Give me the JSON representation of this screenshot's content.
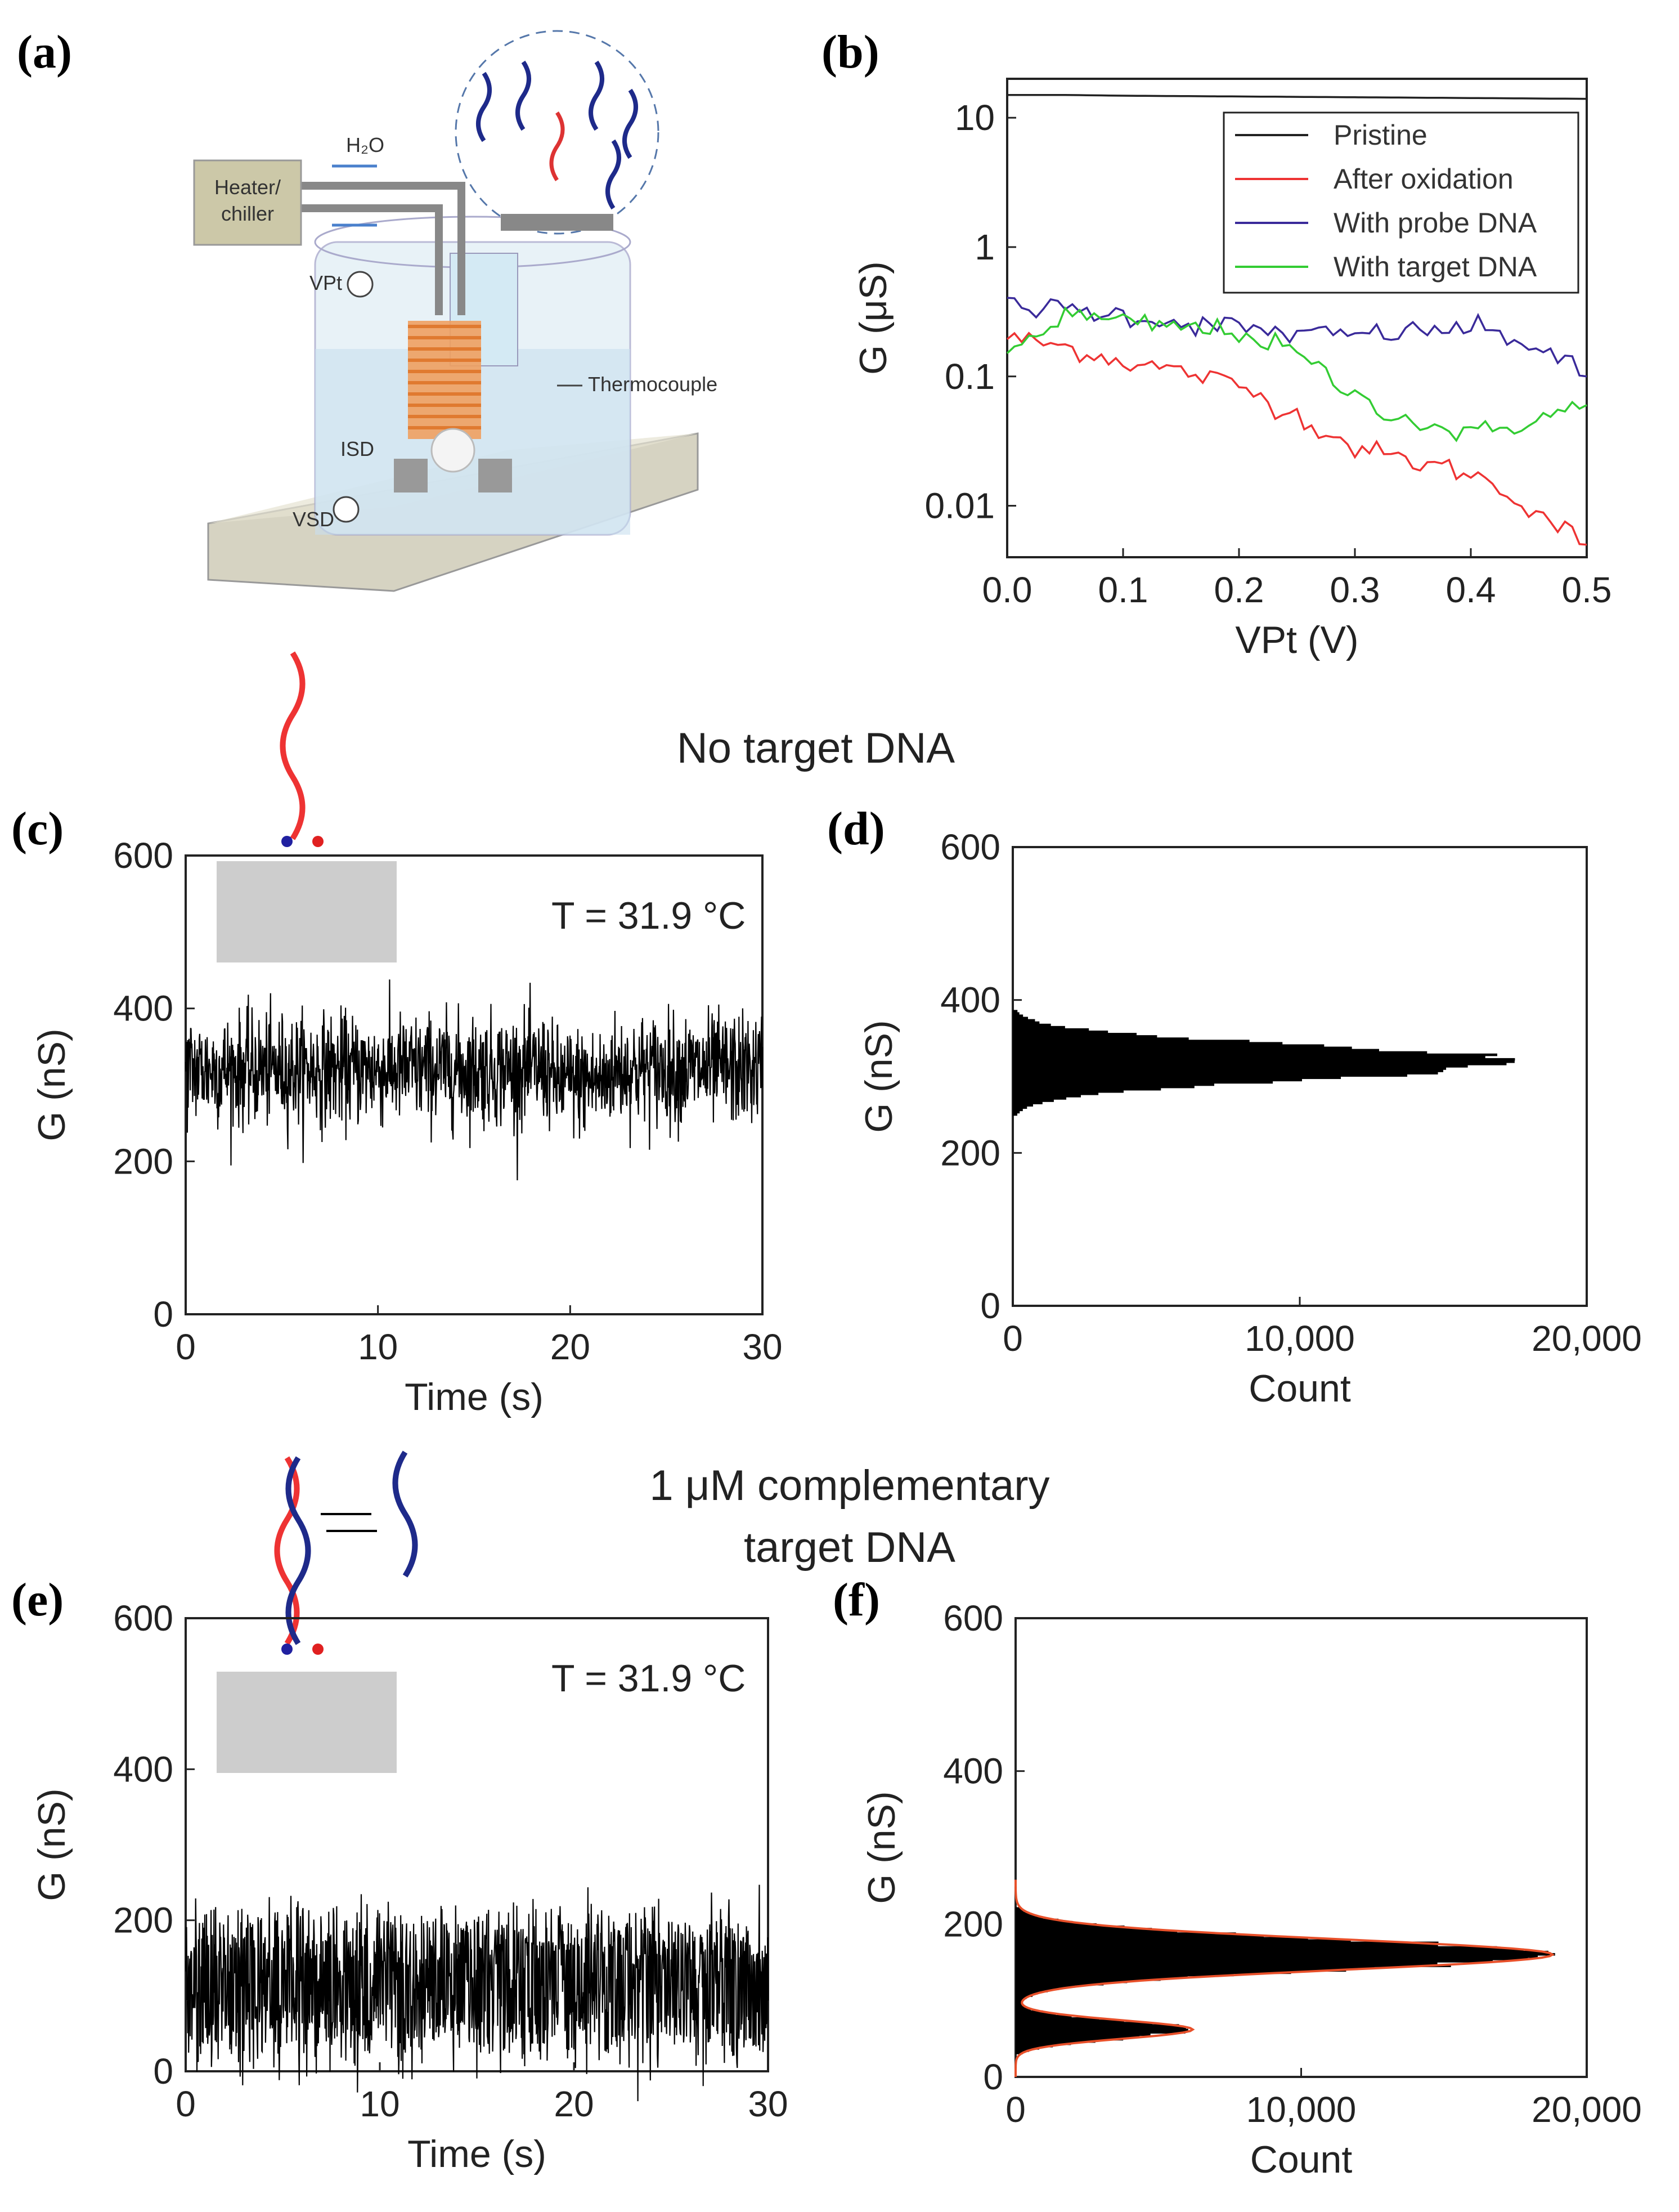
{
  "panels": {
    "a": {
      "label": "(a)",
      "h2o": "H₂O",
      "heater": [
        "Heater/",
        "chiller"
      ],
      "vpt": "VPt",
      "thermocouple": "Thermocouple",
      "isd": "ISD",
      "vsd": "VSD"
    },
    "b_label": "(b)",
    "c_label": "(c)",
    "d_label": "(d)",
    "e_label": "(e)",
    "f_label": "(f)"
  },
  "headings": {
    "no_target": "No target DNA",
    "target_line1": "1 μM complementary",
    "target_line2": "target DNA"
  },
  "temperature_note": "T = 31.9 °C",
  "colors": {
    "pristine": "#222222",
    "oxidation": "#ee3333",
    "probe": "#3a2a9a",
    "target": "#33cc33",
    "fit": "#e8502a",
    "fit2": "#33cc33"
  },
  "chart_data": [
    {
      "id": "b",
      "type": "line",
      "xlabel": "VPt (V)",
      "ylabel": "G (μS)",
      "xlim": [
        0,
        0.5
      ],
      "ylim": [
        0.004,
        20
      ],
      "yscale": "log",
      "x_ticks": [
        "0.0",
        "0.1",
        "0.2",
        "0.3",
        "0.4",
        "0.5"
      ],
      "y_ticks": [
        "10",
        "1",
        "0.1",
        "0.01"
      ],
      "legend_position": "top-right",
      "x": [
        0,
        0.05,
        0.1,
        0.15,
        0.2,
        0.25,
        0.3,
        0.35,
        0.4,
        0.45,
        0.5
      ],
      "series": [
        {
          "name": "Pristine",
          "values": [
            15,
            15,
            14.8,
            14.7,
            14.6,
            14.5,
            14.4,
            14.3,
            14.2,
            14.1,
            14
          ]
        },
        {
          "name": "After oxidation",
          "values": [
            0.2,
            0.17,
            0.13,
            0.11,
            0.085,
            0.05,
            0.028,
            0.022,
            0.018,
            0.01,
            0.005
          ]
        },
        {
          "name": "With probe DNA",
          "values": [
            0.35,
            0.33,
            0.3,
            0.26,
            0.24,
            0.21,
            0.21,
            0.22,
            0.24,
            0.18,
            0.1
          ]
        },
        {
          "name": "With target DNA",
          "values": [
            0.15,
            0.3,
            0.26,
            0.24,
            0.22,
            0.15,
            0.07,
            0.045,
            0.035,
            0.045,
            0.06
          ]
        }
      ]
    },
    {
      "id": "c",
      "type": "line",
      "xlabel": "Time (s)",
      "ylabel": "G (nS)",
      "xlim": [
        0,
        30
      ],
      "ylim": [
        0,
        600
      ],
      "x_ticks": [
        "0",
        "10",
        "20",
        "30"
      ],
      "y_ticks": [
        "0",
        "200",
        "400",
        "600"
      ],
      "description_values": {
        "mean_nS": 320,
        "spread_nS": 120
      }
    },
    {
      "id": "d",
      "type": "bar",
      "xlabel": "Count",
      "ylabel": "G (nS)",
      "xlim": [
        0,
        20000
      ],
      "ylim": [
        0,
        600
      ],
      "x_ticks": [
        "0",
        "10,000",
        "20,000"
      ],
      "y_ticks": [
        "0",
        "200",
        "400",
        "600"
      ],
      "peak_G_nS": 318,
      "peak_count": 17500,
      "sigma_nS": 22
    },
    {
      "id": "e",
      "type": "line",
      "xlabel": "Time (s)",
      "ylabel": "G (nS)",
      "xlim": [
        0,
        30
      ],
      "ylim": [
        0,
        600
      ],
      "x_ticks": [
        "0",
        "10",
        "20",
        "30"
      ],
      "y_ticks": [
        "0",
        "200",
        "400",
        "600"
      ],
      "description_values": {
        "high_state_nS": 165,
        "low_state_nS": 60
      }
    },
    {
      "id": "f",
      "type": "bar",
      "xlabel": "Count",
      "ylabel": "G (nS)",
      "xlim": [
        0,
        20000
      ],
      "ylim": [
        0,
        600
      ],
      "x_ticks": [
        "0",
        "10,000",
        "20,000"
      ],
      "y_ticks": [
        "0",
        "200",
        "400",
        "600"
      ],
      "peaks": [
        {
          "G_nS": 160,
          "count": 18800,
          "sigma_nS": 20
        },
        {
          "G_nS": 62,
          "count": 6200,
          "sigma_nS": 12
        }
      ]
    }
  ]
}
